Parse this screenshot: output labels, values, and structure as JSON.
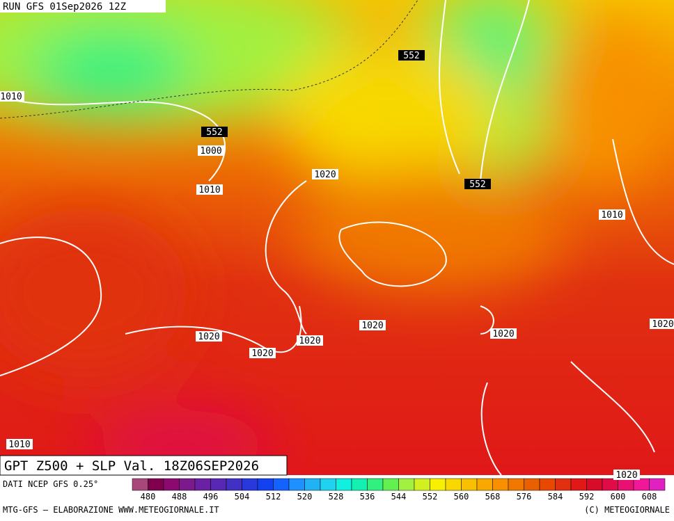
{
  "header": {
    "run": "RUN GFS 01Sep2026 12Z"
  },
  "map": {
    "title": "GPT Z500 + SLP Val. 18Z06SEP2026",
    "contour_labels": [
      1010,
      552,
      1000,
      1010,
      1020,
      552,
      552,
      1010,
      1020,
      1020,
      1020,
      1020,
      1020,
      1020,
      1010,
      1020
    ]
  },
  "colorbar": {
    "source": "DATI NCEP GFS 0.25°",
    "colors": [
      "#a8487a",
      "#80004e",
      "#8c0a70",
      "#7c1a8c",
      "#6a20a2",
      "#5828b4",
      "#4030c4",
      "#2838da",
      "#1242f0",
      "#1462ff",
      "#1e90ff",
      "#20b2f2",
      "#20d2f0",
      "#10f0e0",
      "#12f0b2",
      "#32f080",
      "#62f050",
      "#a2f040",
      "#d2f020",
      "#f8f000",
      "#f8d800",
      "#f8c000",
      "#f8a800",
      "#f89000",
      "#f07800",
      "#e86000",
      "#e84800",
      "#e03010",
      "#e01818",
      "#d80c28",
      "#e00c48",
      "#e81070",
      "#f01898",
      "#e020c0"
    ],
    "labels": [
      480,
      488,
      496,
      504,
      512,
      520,
      528,
      536,
      544,
      552,
      560,
      568,
      576,
      584,
      592,
      600,
      608
    ]
  },
  "footer": {
    "left": "MTG-GFS — ELABORAZIONE WWW.METEOGIORNALE.IT",
    "right": "(C) METEOGIORNALE"
  }
}
